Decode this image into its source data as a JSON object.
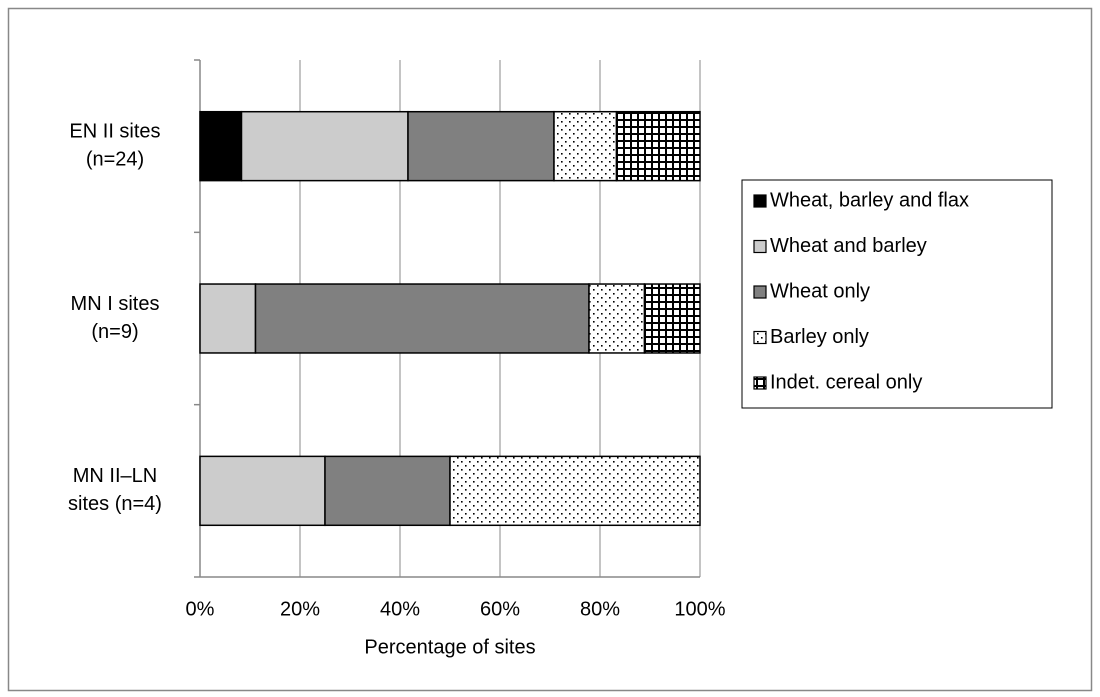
{
  "chart_data": {
    "type": "stacked-bar-horizontal",
    "categories": [
      [
        "EN II sites",
        "(n=24)"
      ],
      [
        "MN I sites",
        "(n=9)"
      ],
      [
        "MN II–LN",
        "sites (n=4)"
      ]
    ],
    "x_label": "Percentage of sites",
    "xlim": [
      0,
      100
    ],
    "xticks": [
      {
        "value": 0,
        "label": "0%"
      },
      {
        "value": 20,
        "label": "20%"
      },
      {
        "value": 40,
        "label": "40%"
      },
      {
        "value": 60,
        "label": "60%"
      },
      {
        "value": 80,
        "label": "80%"
      },
      {
        "value": 100,
        "label": "100%"
      }
    ],
    "grid": true,
    "legend": "right",
    "series": [
      {
        "name": "Wheat, barley and flax",
        "color": "#000000",
        "pattern": "solid",
        "values": [
          8.3,
          0,
          0
        ]
      },
      {
        "name": "Wheat and barley",
        "color": "#cccccc",
        "pattern": "solid",
        "values": [
          33.3,
          11.1,
          25
        ]
      },
      {
        "name": "Wheat only",
        "color": "#808080",
        "pattern": "solid",
        "values": [
          29.2,
          66.7,
          25
        ]
      },
      {
        "name": "Barley only",
        "color": "#000000",
        "pattern": "dots",
        "values": [
          12.5,
          11.1,
          50
        ]
      },
      {
        "name": "Indet. cereal only",
        "color": "#000000",
        "pattern": "grid",
        "values": [
          16.7,
          11.1,
          0
        ]
      }
    ]
  }
}
